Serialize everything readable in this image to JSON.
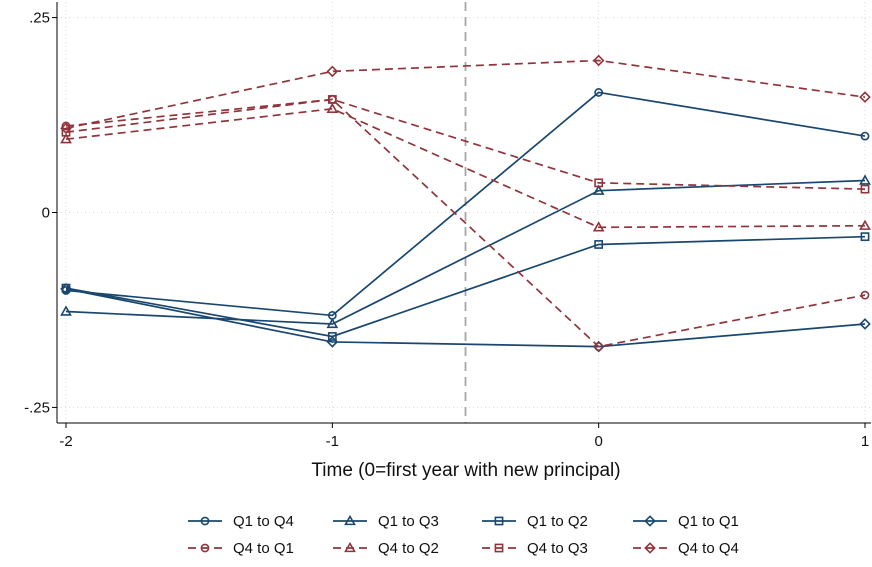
{
  "chart_data": {
    "type": "line",
    "title": "",
    "xlabel": "Time (0=first year with new principal)",
    "ylabel": "",
    "x": [
      -2,
      -1,
      0,
      1
    ],
    "x_tick_labels": [
      "-2",
      "-1",
      "0",
      "1"
    ],
    "y_ticks": [
      -0.25,
      0,
      0.25
    ],
    "y_tick_labels": [
      "-.25",
      "0",
      ".25"
    ],
    "xlim": [
      -2,
      1
    ],
    "ylim": [
      -0.27,
      0.27
    ],
    "grid": true,
    "reference_line_x": -0.5,
    "legend_position": "bottom",
    "series": [
      {
        "name": "Q1 to Q4",
        "color": "#1a476f",
        "marker": "circle",
        "dash": "solid",
        "values": [
          -0.1,
          -0.132,
          0.154,
          0.098
        ]
      },
      {
        "name": "Q1 to Q3",
        "color": "#1a476f",
        "marker": "triangle",
        "dash": "solid",
        "values": [
          -0.127,
          -0.143,
          0.028,
          0.041
        ]
      },
      {
        "name": "Q1 to Q2",
        "color": "#1a476f",
        "marker": "square",
        "dash": "solid",
        "values": [
          -0.097,
          -0.159,
          -0.041,
          -0.031
        ]
      },
      {
        "name": "Q1 to Q1",
        "color": "#1a476f",
        "marker": "diamond",
        "dash": "solid",
        "values": [
          -0.098,
          -0.166,
          -0.172,
          -0.143
        ]
      },
      {
        "name": "Q4 to Q1",
        "color": "#90353b",
        "marker": "circle",
        "dash": "dashed",
        "values": [
          0.111,
          0.145,
          -0.172,
          -0.106
        ]
      },
      {
        "name": "Q4 to Q2",
        "color": "#90353b",
        "marker": "triangle",
        "dash": "dashed",
        "values": [
          0.094,
          0.133,
          -0.019,
          -0.017
        ]
      },
      {
        "name": "Q4 to Q3",
        "color": "#90353b",
        "marker": "square",
        "dash": "dashed",
        "values": [
          0.103,
          0.145,
          0.038,
          0.03
        ]
      },
      {
        "name": "Q4 to Q4",
        "color": "#90353b",
        "marker": "diamond",
        "dash": "dashed",
        "values": [
          0.108,
          0.181,
          0.195,
          0.148
        ]
      }
    ]
  }
}
